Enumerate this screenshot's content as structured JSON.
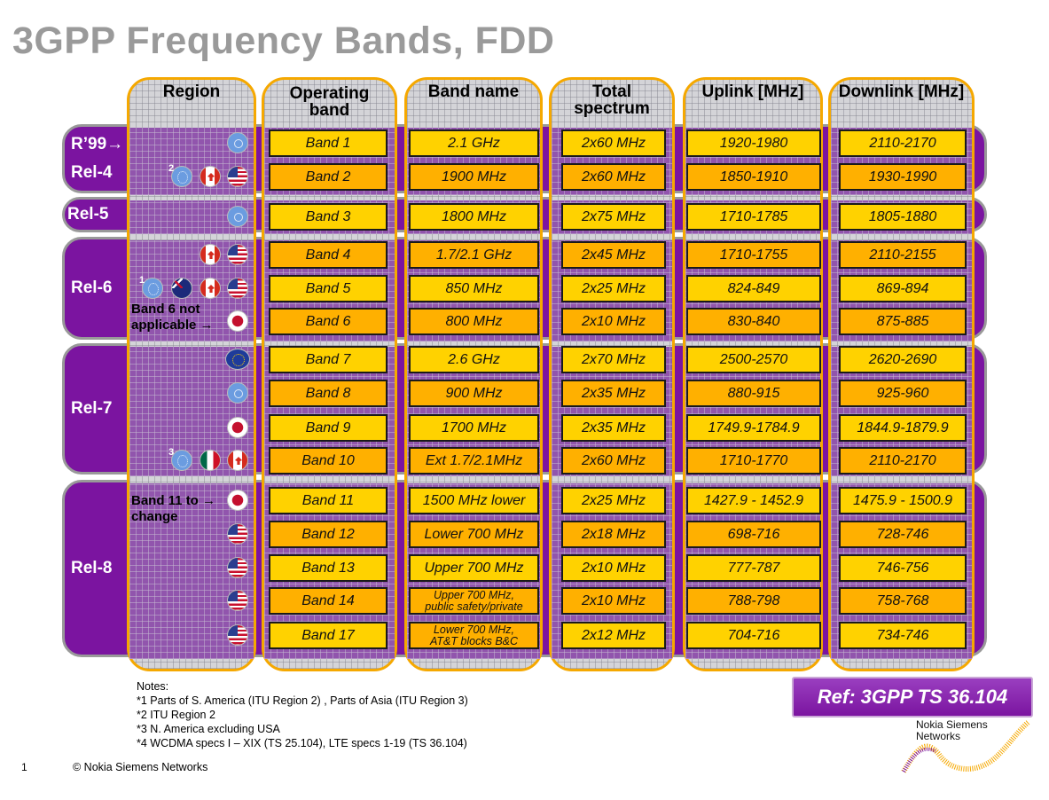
{
  "title": "3GPP Frequency Bands, FDD",
  "columns": [
    "Region",
    "Operating band",
    "Band name",
    "Total spectrum",
    "Uplink [MHz]",
    "Downlink [MHz]"
  ],
  "column_headers": [
    [
      "Region"
    ],
    [
      "Operating",
      "band"
    ],
    [
      "Band name"
    ],
    [
      "Total",
      "spectrum"
    ],
    [
      "Uplink [MHz]"
    ],
    [
      "Downlink [MHz]"
    ]
  ],
  "groups": [
    {
      "label": "R’99→",
      "label2": "Rel-4",
      "rows": [
        0,
        1
      ]
    },
    {
      "label": "Rel-5",
      "rows": [
        2
      ]
    },
    {
      "label": "Rel-6",
      "rows": [
        3,
        5
      ]
    },
    {
      "label": "Rel-7",
      "rows": [
        6,
        9
      ]
    },
    {
      "label": "Rel-8",
      "rows": [
        10,
        14
      ]
    }
  ],
  "colors": {
    "purple": "#7b14a0",
    "yellow": "#ffd200",
    "orange": "#ffb000",
    "column_border": "#f5a800",
    "title_gray": "#9a9a9a"
  },
  "rows": [
    {
      "band": "Band 1",
      "name": "2.1 GHz",
      "spectrum": "2x60 MHz",
      "uplink": "1920-1980",
      "downlink": "2110-2170",
      "shade": "y",
      "flags": [
        "un"
      ]
    },
    {
      "band": "Band 2",
      "name": "1900 MHz",
      "spectrum": "2x60 MHz",
      "uplink": "1850-1910",
      "downlink": "1930-1990",
      "shade": "o",
      "flags": [
        "itu",
        "ca",
        "us"
      ],
      "note_ref": "2"
    },
    {
      "band": "Band 3",
      "name": "1800 MHz",
      "spectrum": "2x75 MHz",
      "uplink": "1710-1785",
      "downlink": "1805-1880",
      "shade": "y",
      "flags": [
        "un"
      ]
    },
    {
      "band": "Band 4",
      "name": "1.7/2.1 GHz",
      "spectrum": "2x45 MHz",
      "uplink": "1710-1755",
      "downlink": "2110-2155",
      "shade": "o",
      "flags": [
        "ca",
        "us"
      ]
    },
    {
      "band": "Band 5",
      "name": "850 MHz",
      "spectrum": "2x25 MHz",
      "uplink": "824-849",
      "downlink": "869-894",
      "shade": "y",
      "flags": [
        "itu",
        "au",
        "ca",
        "us"
      ],
      "note_ref": "1"
    },
    {
      "band": "Band 6",
      "name": "800 MHz",
      "spectrum": "2x10 MHz",
      "uplink": "830-840",
      "downlink": "875-885",
      "shade": "o",
      "flags": [
        "jp"
      ],
      "region_text": [
        "Band 6 not",
        "applicable →"
      ]
    },
    {
      "band": "Band 7",
      "name": "2.6 GHz",
      "spectrum": "2x70 MHz",
      "uplink": "2500-2570",
      "downlink": "2620-2690",
      "shade": "y",
      "flags": [
        "eu"
      ]
    },
    {
      "band": "Band 8",
      "name": "900 MHz",
      "spectrum": "2x35 MHz",
      "uplink": "880-915",
      "downlink": "925-960",
      "shade": "o",
      "flags": [
        "un"
      ]
    },
    {
      "band": "Band 9",
      "name": "1700 MHz",
      "spectrum": "2x35 MHz",
      "uplink": "1749.9-1784.9",
      "downlink": "1844.9-1879.9",
      "shade": "y",
      "flags": [
        "jp"
      ]
    },
    {
      "band": "Band 10",
      "name": "Ext 1.7/2.1MHz",
      "spectrum": "2x60 MHz",
      "uplink": "1710-1770",
      "downlink": "2110-2170",
      "shade": "o",
      "flags": [
        "itu",
        "mx",
        "ca"
      ],
      "note_ref": "3"
    },
    {
      "band": "Band 11",
      "name": "1500 MHz lower",
      "spectrum": "2x25 MHz",
      "uplink": "1427.9 - 1452.9",
      "downlink": "1475.9 - 1500.9",
      "shade": "y",
      "flags": [
        "jp"
      ],
      "region_text": [
        "Band 11 to →",
        "change"
      ]
    },
    {
      "band": "Band 12",
      "name": "Lower 700 MHz",
      "spectrum": "2x18 MHz",
      "uplink": "698-716",
      "downlink": "728-746",
      "shade": "o",
      "flags": [
        "us"
      ]
    },
    {
      "band": "Band 13",
      "name": "Upper 700 MHz",
      "spectrum": "2x10 MHz",
      "uplink": "777-787",
      "downlink": "746-756",
      "shade": "y",
      "flags": [
        "us"
      ]
    },
    {
      "band": "Band 14",
      "name": "Upper 700 MHz, public safety/private",
      "spectrum": "2x10 MHz",
      "uplink": "788-798",
      "downlink": "758-768",
      "shade": "o",
      "flags": [
        "us"
      ]
    },
    {
      "band": "Band 17",
      "name": "Lower 700 MHz, AT&T blocks B&C",
      "spectrum": "2x12 MHz",
      "uplink": "704-716",
      "downlink": "734-746",
      "shade": "y",
      "name_shade": "o",
      "flags": [
        "us"
      ]
    }
  ],
  "notes": [
    "Notes:",
    "*1 Parts of S. America (ITU Region 2) , Parts of Asia (ITU Region 3)",
    "*2 ITU Region 2",
    "*3 N. America excluding USA",
    "*4 WCDMA specs I – XIX (TS 25.104), LTE specs 1-19 (TS 36.104)"
  ],
  "reference": "Ref: 3GPP TS 36.104",
  "footer": {
    "page": "1",
    "copyright": "© Nokia Siemens Networks"
  },
  "logo": {
    "line1": "Nokia Siemens",
    "line2": "Networks"
  }
}
